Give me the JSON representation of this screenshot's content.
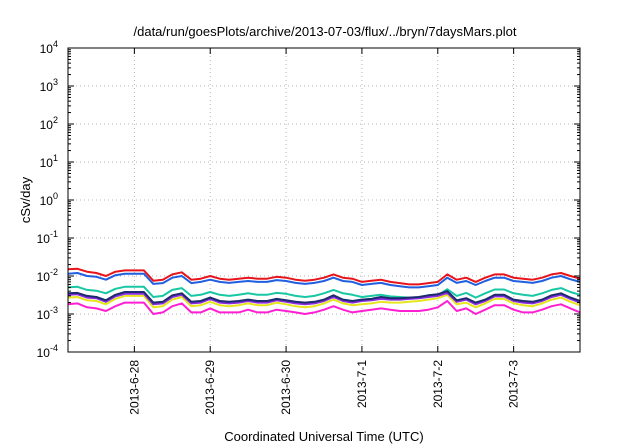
{
  "chart_data": {
    "type": "line",
    "title": "/data/run/goesPlots/archive/2013-07-03/flux/../bryn/7daysMars.plot",
    "xlabel": "Coordinated Universal Time (UTC)",
    "ylabel": "cSv/day",
    "yscale": "log",
    "xlim": [
      "2013-06-27T03:00",
      "2013-07-03T21:00"
    ],
    "ylim": [
      0.0001,
      10000
    ],
    "grid": true,
    "x_ticks": [
      {
        "date": "2013-06-28T00:00",
        "label": "2013-6-28"
      },
      {
        "date": "2013-06-29T00:00",
        "label": "2013-6-29"
      },
      {
        "date": "2013-06-30T00:00",
        "label": "2013-6-30"
      },
      {
        "date": "2013-07-01T00:00",
        "label": "2013-7-1"
      },
      {
        "date": "2013-07-02T00:00",
        "label": "2013-7-2"
      },
      {
        "date": "2013-07-03T00:00",
        "label": "2013-7-3"
      }
    ],
    "y_ticks": [
      {
        "value": 0.0001,
        "base": "10",
        "exp": "-4"
      },
      {
        "value": 0.001,
        "base": "10",
        "exp": "-3"
      },
      {
        "value": 0.01,
        "base": "10",
        "exp": "-2"
      },
      {
        "value": 0.1,
        "base": "10",
        "exp": "-1"
      },
      {
        "value": 1,
        "base": "10",
        "exp": "0"
      },
      {
        "value": 10,
        "base": "10",
        "exp": "1"
      },
      {
        "value": 100,
        "base": "10",
        "exp": "2"
      },
      {
        "value": 1000,
        "base": "10",
        "exp": "3"
      },
      {
        "value": 10000,
        "base": "10",
        "exp": "4"
      }
    ],
    "x": [
      "2013-06-27T03:00",
      "2013-06-27T06:00",
      "2013-06-27T09:00",
      "2013-06-27T12:00",
      "2013-06-27T15:00",
      "2013-06-27T18:00",
      "2013-06-27T21:00",
      "2013-06-28T00:00",
      "2013-06-28T03:00",
      "2013-06-28T06:00",
      "2013-06-28T09:00",
      "2013-06-28T12:00",
      "2013-06-28T15:00",
      "2013-06-28T18:00",
      "2013-06-28T21:00",
      "2013-06-29T00:00",
      "2013-06-29T03:00",
      "2013-06-29T06:00",
      "2013-06-29T09:00",
      "2013-06-29T12:00",
      "2013-06-29T15:00",
      "2013-06-29T18:00",
      "2013-06-29T21:00",
      "2013-06-30T00:00",
      "2013-06-30T03:00",
      "2013-06-30T06:00",
      "2013-06-30T09:00",
      "2013-06-30T12:00",
      "2013-06-30T15:00",
      "2013-06-30T18:00",
      "2013-06-30T21:00",
      "2013-07-01T00:00",
      "2013-07-01T03:00",
      "2013-07-01T06:00",
      "2013-07-01T09:00",
      "2013-07-01T12:00",
      "2013-07-01T15:00",
      "2013-07-01T18:00",
      "2013-07-01T21:00",
      "2013-07-02T00:00",
      "2013-07-02T03:00",
      "2013-07-02T06:00",
      "2013-07-02T09:00",
      "2013-07-02T12:00",
      "2013-07-02T15:00",
      "2013-07-02T18:00",
      "2013-07-02T21:00",
      "2013-07-03T00:00",
      "2013-07-03T03:00",
      "2013-07-03T06:00",
      "2013-07-03T09:00",
      "2013-07-03T12:00",
      "2013-07-03T15:00",
      "2013-07-03T18:00",
      "2013-07-03T21:00"
    ],
    "series": [
      {
        "color": "#e8141b",
        "values": [
          0.015,
          0.0155,
          0.013,
          0.012,
          0.01,
          0.013,
          0.014,
          0.014,
          0.014,
          0.0075,
          0.008,
          0.011,
          0.0125,
          0.008,
          0.0085,
          0.01,
          0.0085,
          0.008,
          0.0085,
          0.009,
          0.0085,
          0.0085,
          0.0095,
          0.009,
          0.008,
          0.0075,
          0.008,
          0.009,
          0.011,
          0.009,
          0.0085,
          0.007,
          0.0075,
          0.008,
          0.007,
          0.0065,
          0.006,
          0.006,
          0.0065,
          0.007,
          0.011,
          0.008,
          0.009,
          0.007,
          0.009,
          0.011,
          0.011,
          0.009,
          0.0085,
          0.008,
          0.009,
          0.011,
          0.012,
          0.01,
          0.0085
        ]
      },
      {
        "color": "#1f5fe0",
        "values": [
          0.0115,
          0.012,
          0.01,
          0.0095,
          0.008,
          0.0105,
          0.0115,
          0.0115,
          0.0115,
          0.0062,
          0.0065,
          0.009,
          0.01,
          0.0065,
          0.007,
          0.008,
          0.007,
          0.0066,
          0.007,
          0.0074,
          0.007,
          0.007,
          0.0078,
          0.0074,
          0.0066,
          0.0062,
          0.0066,
          0.0074,
          0.009,
          0.0074,
          0.007,
          0.0058,
          0.0062,
          0.0066,
          0.0058,
          0.0054,
          0.005,
          0.005,
          0.0054,
          0.0058,
          0.009,
          0.0066,
          0.0074,
          0.0058,
          0.0074,
          0.009,
          0.009,
          0.0074,
          0.007,
          0.0066,
          0.0074,
          0.009,
          0.01,
          0.0082,
          0.007
        ]
      },
      {
        "color": "#18c7a3",
        "values": [
          0.005,
          0.0052,
          0.0043,
          0.0041,
          0.0035,
          0.0046,
          0.0052,
          0.0052,
          0.0052,
          0.0028,
          0.003,
          0.0043,
          0.0048,
          0.003,
          0.0032,
          0.0038,
          0.0032,
          0.003,
          0.0032,
          0.0035,
          0.0032,
          0.0032,
          0.0036,
          0.0034,
          0.003,
          0.0028,
          0.003,
          0.0035,
          0.0043,
          0.0035,
          0.0032,
          0.0028,
          0.003,
          0.0032,
          0.0029,
          0.0028,
          0.0027,
          0.0027,
          0.0029,
          0.0031,
          0.0045,
          0.003,
          0.0036,
          0.0027,
          0.0035,
          0.0044,
          0.0044,
          0.0035,
          0.0032,
          0.003,
          0.0035,
          0.0043,
          0.0048,
          0.0038,
          0.0032
        ]
      },
      {
        "color": "#e6e61c",
        "values": [
          0.0027,
          0.0028,
          0.0023,
          0.0022,
          0.0018,
          0.0025,
          0.003,
          0.003,
          0.003,
          0.0015,
          0.0016,
          0.0024,
          0.0028,
          0.0016,
          0.0017,
          0.0021,
          0.0017,
          0.0016,
          0.0017,
          0.0019,
          0.0017,
          0.0017,
          0.002,
          0.0018,
          0.0016,
          0.0015,
          0.0016,
          0.0019,
          0.0024,
          0.0019,
          0.0017,
          0.0018,
          0.0019,
          0.0021,
          0.002,
          0.002,
          0.0021,
          0.0022,
          0.0024,
          0.0026,
          0.0032,
          0.0018,
          0.002,
          0.0015,
          0.0019,
          0.0025,
          0.0025,
          0.0019,
          0.0017,
          0.0016,
          0.0019,
          0.0024,
          0.0027,
          0.0021,
          0.0017
        ]
      },
      {
        "color": "#8a2be2",
        "values": [
          0.0032,
          0.0033,
          0.0027,
          0.0026,
          0.0021,
          0.0029,
          0.0034,
          0.0034,
          0.0034,
          0.0018,
          0.0019,
          0.0028,
          0.0032,
          0.0019,
          0.002,
          0.0025,
          0.002,
          0.0019,
          0.002,
          0.0022,
          0.002,
          0.002,
          0.0023,
          0.0021,
          0.0019,
          0.0018,
          0.0019,
          0.0022,
          0.0028,
          0.0022,
          0.002,
          0.0022,
          0.0023,
          0.0025,
          0.0024,
          0.0024,
          0.0025,
          0.0026,
          0.0028,
          0.003,
          0.0036,
          0.0021,
          0.0024,
          0.0018,
          0.0022,
          0.0029,
          0.0029,
          0.0022,
          0.002,
          0.0019,
          0.0022,
          0.0028,
          0.0032,
          0.0025,
          0.002
        ]
      },
      {
        "color": "#1c2a6e",
        "values": [
          0.0035,
          0.0036,
          0.003,
          0.0028,
          0.0023,
          0.0032,
          0.0038,
          0.0038,
          0.0038,
          0.002,
          0.0021,
          0.0031,
          0.0035,
          0.0021,
          0.0022,
          0.0027,
          0.0022,
          0.0021,
          0.0022,
          0.0024,
          0.0022,
          0.0022,
          0.0025,
          0.0023,
          0.0021,
          0.002,
          0.0021,
          0.0024,
          0.0031,
          0.0024,
          0.0022,
          0.0024,
          0.0025,
          0.0028,
          0.0026,
          0.0026,
          0.0027,
          0.0028,
          0.0031,
          0.0033,
          0.004,
          0.0023,
          0.0026,
          0.002,
          0.0024,
          0.0032,
          0.0032,
          0.0024,
          0.0022,
          0.0021,
          0.0024,
          0.0031,
          0.0035,
          0.0027,
          0.0022
        ]
      },
      {
        "color": "#ff1fd2",
        "values": [
          0.0018,
          0.0019,
          0.0015,
          0.0014,
          0.0012,
          0.0016,
          0.002,
          0.002,
          0.002,
          0.001,
          0.0011,
          0.0016,
          0.0019,
          0.0011,
          0.0011,
          0.0014,
          0.0011,
          0.0011,
          0.0011,
          0.0013,
          0.0011,
          0.0011,
          0.0013,
          0.0012,
          0.0011,
          0.001,
          0.0011,
          0.0013,
          0.0016,
          0.0013,
          0.0011,
          0.0012,
          0.0013,
          0.0014,
          0.0013,
          0.0012,
          0.0012,
          0.0012,
          0.0013,
          0.0015,
          0.0022,
          0.0012,
          0.0014,
          0.001,
          0.0013,
          0.0017,
          0.0017,
          0.0013,
          0.0011,
          0.0011,
          0.0013,
          0.0016,
          0.0018,
          0.0014,
          0.0011
        ]
      }
    ]
  }
}
